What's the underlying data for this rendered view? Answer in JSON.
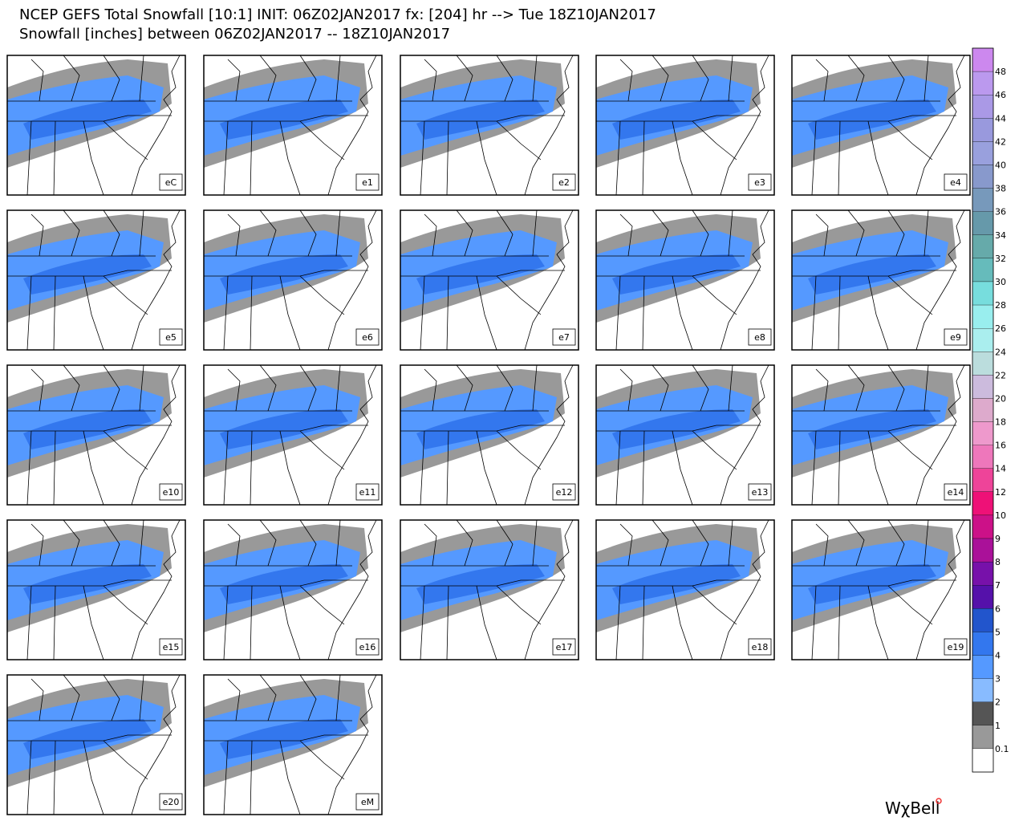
{
  "header": {
    "line1": "NCEP GEFS Total Snowfall [10:1] INIT: 06Z02JAN2017 fx: [204] hr --> Tue 18Z10JAN2017",
    "line2": "Snowfall [inches] between 06Z02JAN2017 -- 18Z10JAN2017"
  },
  "panels": [
    {
      "label": "eC"
    },
    {
      "label": "e1"
    },
    {
      "label": "e2"
    },
    {
      "label": "e3"
    },
    {
      "label": "e4"
    },
    {
      "label": "e5"
    },
    {
      "label": "e6"
    },
    {
      "label": "e7"
    },
    {
      "label": "e8"
    },
    {
      "label": "e9"
    },
    {
      "label": "e10"
    },
    {
      "label": "e11"
    },
    {
      "label": "e12"
    },
    {
      "label": "e13"
    },
    {
      "label": "e14"
    },
    {
      "label": "e15"
    },
    {
      "label": "e16"
    },
    {
      "label": "e17"
    },
    {
      "label": "e18"
    },
    {
      "label": "e19"
    },
    {
      "label": "e20"
    },
    {
      "label": "eM"
    }
  ],
  "colorbar": {
    "ticks": [
      48,
      46,
      44,
      42,
      40,
      38,
      36,
      34,
      32,
      30,
      28,
      26,
      24,
      22,
      20,
      18,
      16,
      14,
      12,
      10,
      9,
      8,
      7,
      6,
      5,
      4,
      3,
      2,
      1,
      0.1
    ],
    "colors": [
      "#cc88ee",
      "#bb99ee",
      "#aa99e6",
      "#9999dd",
      "#99a0dd",
      "#8899cc",
      "#7799bb",
      "#6699aa",
      "#66aaaa",
      "#66bbbb",
      "#77dddd",
      "#99eeee",
      "#aaeeee",
      "#bbdddd",
      "#ccbbdd",
      "#ddaacc",
      "#ee99cc",
      "#ee77bb",
      "#ee4499",
      "#ee1177",
      "#cc1188",
      "#aa1199",
      "#7711aa",
      "#5511aa",
      "#2255cc",
      "#3377ee",
      "#5599ff",
      "#88bbff",
      "#555555",
      "#999999",
      "#ffffff"
    ]
  },
  "logo": "WχBell"
}
